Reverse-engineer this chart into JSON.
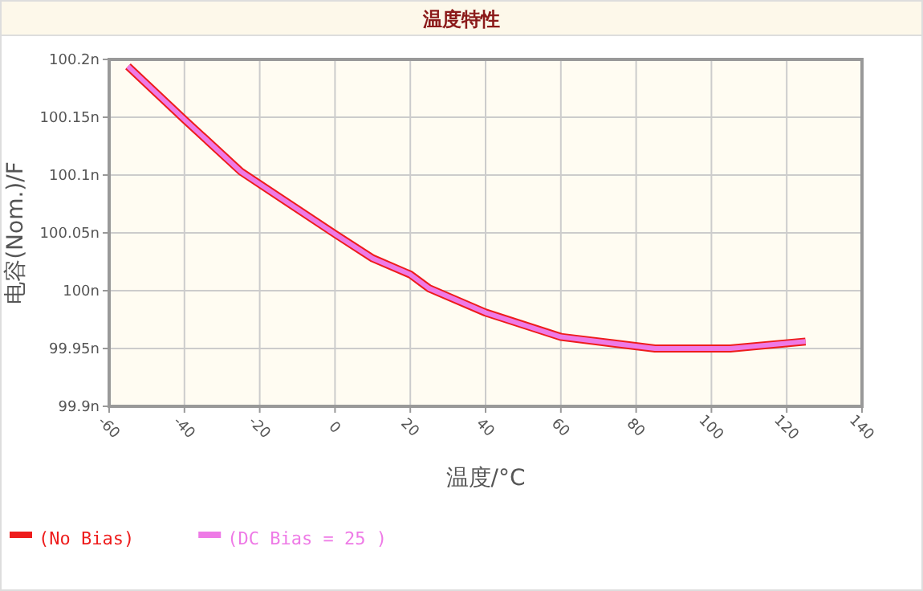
{
  "chart_data": {
    "type": "line",
    "title": "温度特性",
    "xlabel": "温度/°C",
    "ylabel": "电容(Nom.)/F",
    "x": [
      -55,
      -40,
      -25,
      0,
      10,
      20,
      25,
      40,
      60,
      85,
      105,
      125
    ],
    "series": [
      {
        "name": "(No Bias)",
        "color": "#ee1c1c",
        "values": [
          100.194,
          100.148,
          100.103,
          100.049,
          100.028,
          100.014,
          100.002,
          99.981,
          99.96,
          99.95,
          99.95,
          99.956
        ]
      },
      {
        "name": "(DC Bias = 25 )",
        "color": "#ee7ae6",
        "values": [
          100.194,
          100.148,
          100.103,
          100.049,
          100.028,
          100.014,
          100.002,
          99.981,
          99.96,
          99.95,
          99.95,
          99.956
        ]
      }
    ],
    "xlim": [
      -60,
      140
    ],
    "xticks": [
      -60,
      -40,
      -20,
      0,
      20,
      40,
      60,
      80,
      100,
      120,
      140
    ],
    "ylim": [
      99.9,
      100.2
    ],
    "yticks": [
      {
        "value": 99.9,
        "label": "99.9n"
      },
      {
        "value": 99.95,
        "label": "99.95n"
      },
      {
        "value": 100,
        "label": "100n"
      },
      {
        "value": 100.05,
        "label": "100.05n"
      },
      {
        "value": 100.1,
        "label": "100.1n"
      },
      {
        "value": 100.15,
        "label": "100.15n"
      },
      {
        "value": 100.2,
        "label": "100.2n"
      }
    ],
    "grid": true,
    "legend": "bottom left",
    "marker": "none",
    "line_style": "solid"
  }
}
